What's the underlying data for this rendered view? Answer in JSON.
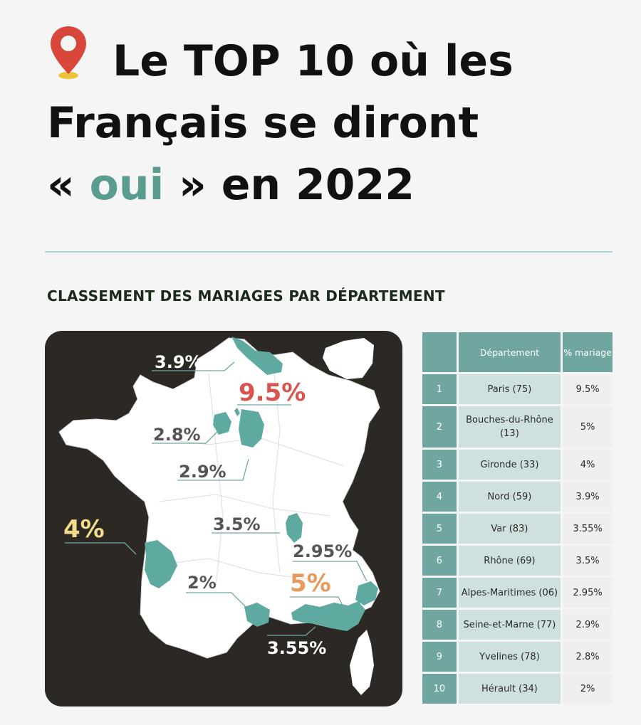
{
  "title": {
    "line1": "Le TOP 10 où les",
    "line2": "Français se diront",
    "line3_open": "« ",
    "line3_highlight": "oui",
    "line3_close": " » en 2022",
    "icon": "map-pin-icon"
  },
  "subtitle": "CLASSEMENT DES MARIAGES PAR DÉPARTEMENT",
  "colors": {
    "accent_teal": "#5b9c90",
    "table_header": "#6fa7a0",
    "label_red": "#d9534f",
    "label_yellow": "#f3dc8c",
    "label_orange": "#e89a5c",
    "map_background": "#2c2924"
  },
  "map": {
    "labels": [
      {
        "id": "nord",
        "text": "3.9%",
        "color": "#ffffff"
      },
      {
        "id": "paris",
        "text": "9.5%",
        "color": "#d9534f"
      },
      {
        "id": "yvelines",
        "text": "2.8%",
        "color": "#555555"
      },
      {
        "id": "seine-et-marne",
        "text": "2.9%",
        "color": "#555555"
      },
      {
        "id": "rhone",
        "text": "3.5%",
        "color": "#555555"
      },
      {
        "id": "gironde",
        "text": "4%",
        "color": "#f3dc8c"
      },
      {
        "id": "alpes-maritimes",
        "text": "2.95%",
        "color": "#555555"
      },
      {
        "id": "bouches-du-rhone",
        "text": "5%",
        "color": "#e89a5c"
      },
      {
        "id": "herault",
        "text": "2%",
        "color": "#555555"
      },
      {
        "id": "var",
        "text": "3.55%",
        "color": "#ffffff"
      }
    ]
  },
  "table": {
    "headers": [
      "",
      "Département",
      "% mariage"
    ],
    "rows": [
      {
        "rank": "1",
        "dept": "Paris (75)",
        "pct": "9.5%"
      },
      {
        "rank": "2",
        "dept": "Bouches-du-Rhône (13)",
        "pct": "5%"
      },
      {
        "rank": "3",
        "dept": "Gironde (33)",
        "pct": "4%"
      },
      {
        "rank": "4",
        "dept": "Nord (59)",
        "pct": "3.9%"
      },
      {
        "rank": "5",
        "dept": "Var (83)",
        "pct": "3.55%"
      },
      {
        "rank": "6",
        "dept": "Rhône (69)",
        "pct": "3.5%"
      },
      {
        "rank": "7",
        "dept": "Alpes-Maritimes (06)",
        "pct": "2.95%"
      },
      {
        "rank": "8",
        "dept": "Seine-et-Marne (77)",
        "pct": "2.9%"
      },
      {
        "rank": "9",
        "dept": "Yvelines (78)",
        "pct": "2.8%"
      },
      {
        "rank": "10",
        "dept": "Hérault (34)",
        "pct": "2%"
      }
    ]
  }
}
